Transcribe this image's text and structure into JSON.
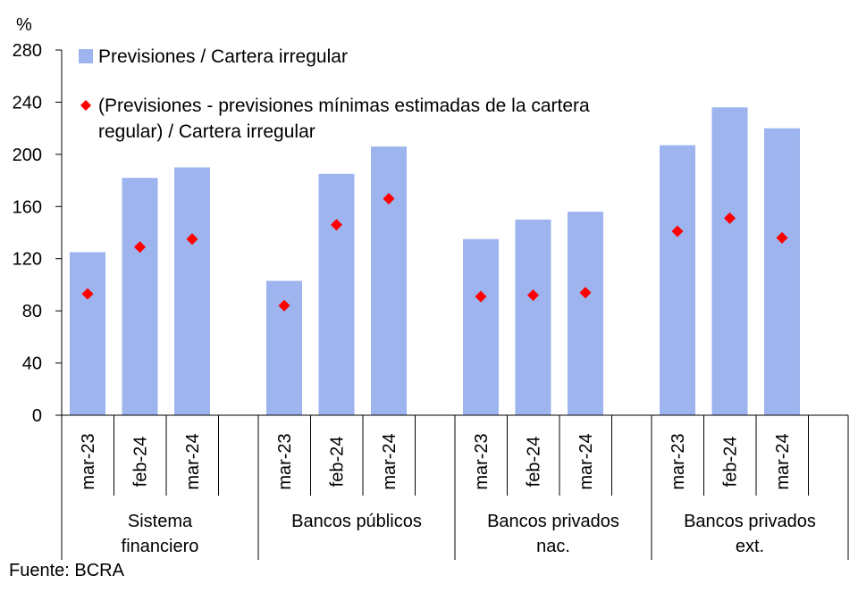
{
  "chart_data": {
    "type": "bar",
    "yunit": "%",
    "ylim": [
      0,
      280
    ],
    "yticks": [
      0,
      40,
      80,
      120,
      160,
      200,
      240,
      280
    ],
    "grid": false,
    "legend_position": "top-left",
    "groups": [
      {
        "lines": [
          "Sistema",
          "financiero"
        ],
        "categories": [
          "mar-23",
          "feb-24",
          "mar-24"
        ]
      },
      {
        "lines": [
          "Bancos públicos"
        ],
        "categories": [
          "mar-23",
          "feb-24",
          "mar-24"
        ]
      },
      {
        "lines": [
          "Bancos privados",
          "nac."
        ],
        "categories": [
          "mar-23",
          "feb-24",
          "mar-24"
        ]
      },
      {
        "lines": [
          "Bancos privados",
          "ext."
        ],
        "categories": [
          "mar-23",
          "feb-24",
          "mar-24"
        ]
      }
    ],
    "series": [
      {
        "name": "Previsiones / Cartera irregular",
        "type": "bar",
        "color": "#9db4ef",
        "values": [
          125,
          182,
          190,
          103,
          185,
          206,
          135,
          150,
          156,
          207,
          236,
          220
        ]
      },
      {
        "name": "(Previsiones - previsiones mínimas estimadas de la cartera regular) / Cartera irregular",
        "legend_lines": [
          "(Previsiones - previsiones mínimas estimadas de la cartera",
          "regular) / Cartera irregular"
        ],
        "type": "scatter",
        "marker": "diamond",
        "color": "#ff0000",
        "values": [
          93,
          129,
          135,
          84,
          146,
          166,
          91,
          92,
          94,
          141,
          151,
          136
        ]
      }
    ]
  },
  "source_text": "Fuente: BCRA"
}
